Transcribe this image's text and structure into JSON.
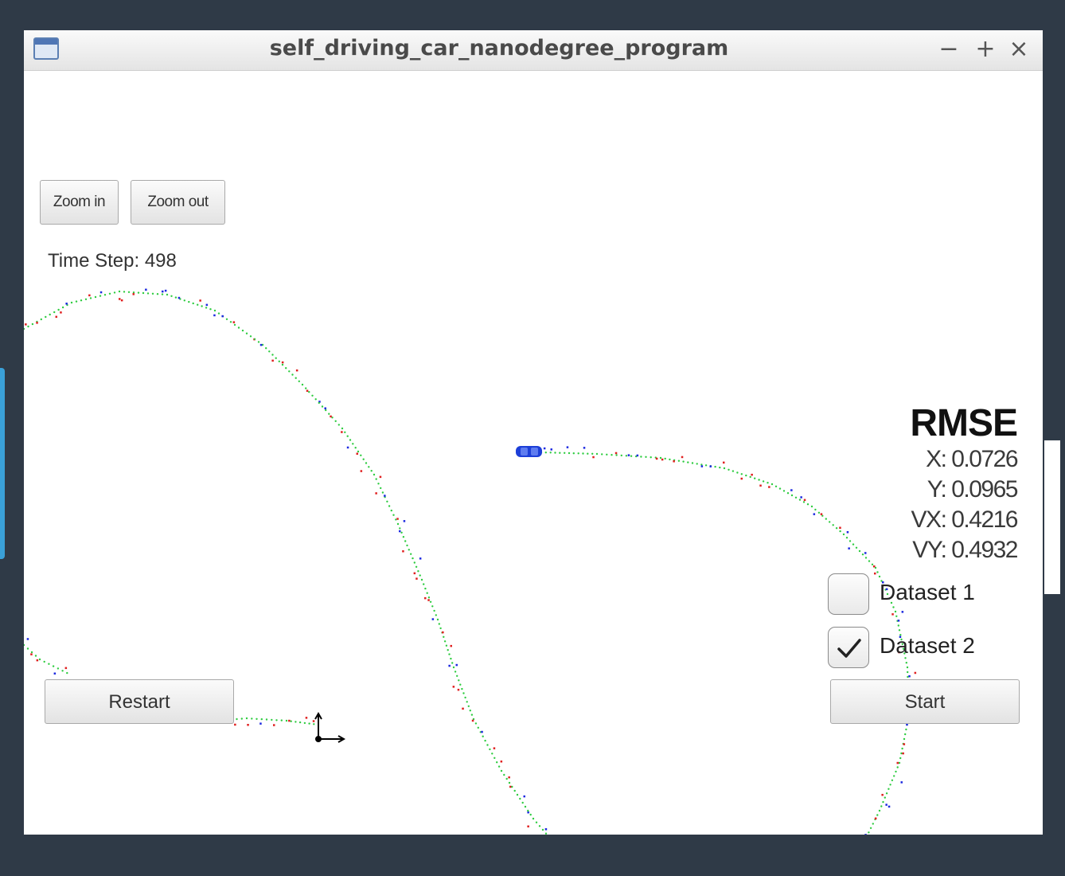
{
  "window": {
    "title": "self_driving_car_nanodegree_program"
  },
  "title_controls": {
    "minimize": "−",
    "maximize": "+",
    "close": "×"
  },
  "toolbar": {
    "zoom_in": "Zoom in",
    "zoom_out": "Zoom out"
  },
  "status": {
    "time_step": "Time Step: 498"
  },
  "rmse": {
    "title": "RMSE",
    "x": "X: 0.0726",
    "y": "Y: 0.0965",
    "vx": "VX: 0.4216",
    "vy": "VY: 0.4932"
  },
  "datasets": [
    {
      "label": "Dataset 1",
      "checked": false
    },
    {
      "label": "Dataset 2",
      "checked": true
    }
  ],
  "buttons": {
    "restart": "Restart",
    "start": "Start"
  },
  "colors": {
    "background": "#2f3a47",
    "ground_truth": "#2ecc40",
    "lidar": "#e02020",
    "radar": "#1d2ae0",
    "car": "#1d3fd8"
  },
  "icons": {
    "car": "car-icon",
    "axes": "axes-icon",
    "window": "window-icon"
  }
}
